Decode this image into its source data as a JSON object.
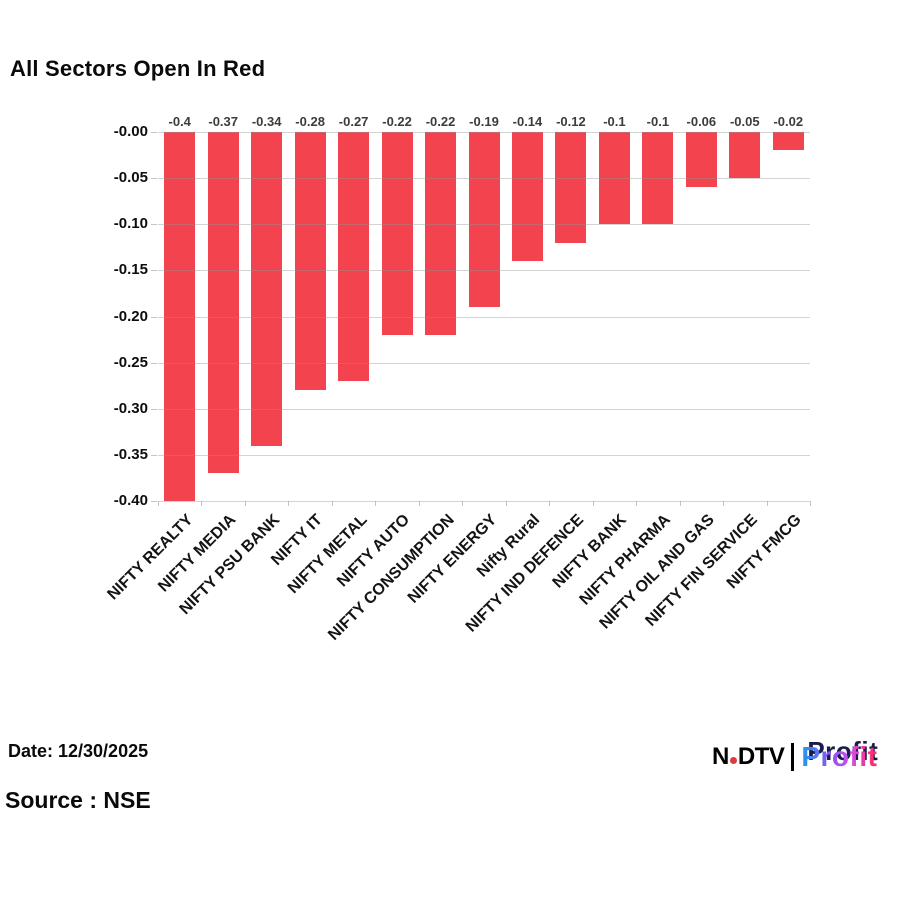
{
  "title": "All Sectors Open In Red",
  "footer": {
    "date_label": "Date: 12/30/2025",
    "source_label": "Source : NSE"
  },
  "logo": {
    "ndtv_n": "N",
    "ndtv_dtv": "DTV",
    "profit": "Profit",
    "dot_color": "#e03a3f"
  },
  "chart_data": {
    "type": "bar",
    "title": "All Sectors Open In Red",
    "categories": [
      "NIFTY REALTY",
      "NIFTY MEDIA",
      "NIFTY PSU BANK",
      "NIFTY IT",
      "NIFTY METAL",
      "NIFTY AUTO",
      "NIFTY CONSUMPTION",
      "NIFTY ENERGY",
      "Nifty Rural",
      "NIFTY IND DEFENCE",
      "NIFTY BANK",
      "NIFTY PHARMA",
      "NIFTY OIL AND GAS",
      "NIFTY FIN SERVICE",
      "NIFTY FMCG"
    ],
    "values": [
      -0.4,
      -0.37,
      -0.34,
      -0.28,
      -0.27,
      -0.22,
      -0.22,
      -0.19,
      -0.14,
      -0.12,
      -0.1,
      -0.1,
      -0.06,
      -0.05,
      -0.02
    ],
    "value_labels": [
      "-0.4",
      "-0.37",
      "-0.34",
      "-0.28",
      "-0.27",
      "-0.22",
      "-0.22",
      "-0.19",
      "-0.14",
      "-0.12",
      "-0.1",
      "-0.1",
      "-0.06",
      "-0.05",
      "-0.02"
    ],
    "yticks": [
      "-0.00",
      "-0.05",
      "-0.10",
      "-0.15",
      "-0.20",
      "-0.25",
      "-0.30",
      "-0.35",
      "-0.40"
    ],
    "ylim": [
      -0.4,
      0
    ],
    "xlabel": "",
    "ylabel": "",
    "bar_color": "#f2434e",
    "grid": true,
    "legend": false
  }
}
